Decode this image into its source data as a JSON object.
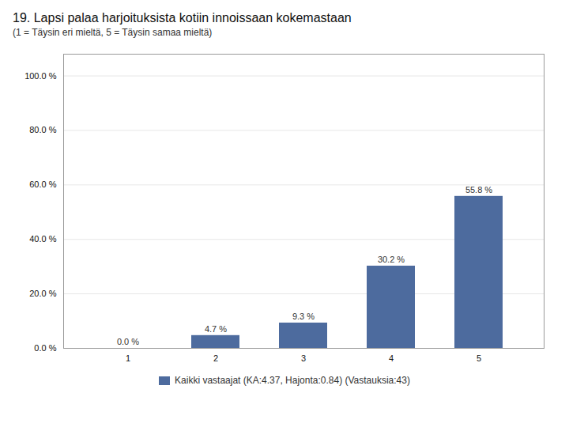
{
  "chart_data": {
    "type": "bar",
    "title": "19. Lapsi palaa harjoituksista kotiin innoissaan kokemastaan",
    "subtitle": "(1 = Täysin eri mieltä, 5 = Täysin samaa mieltä)",
    "categories": [
      1,
      2,
      3,
      4,
      5
    ],
    "series": [
      {
        "name": "Kaikki vastaajat (KA:4.37, Hajonta:0.84) (Vastauksia:43)",
        "color": "#4d6b9e",
        "values": [
          0.0,
          4.7,
          9.3,
          30.2,
          55.8
        ],
        "value_labels": [
          "0.0 %",
          "4.7 %",
          "9.3 %",
          "30.2 %",
          "55.8 %"
        ]
      }
    ],
    "data_labels": true,
    "ylim": [
      0,
      108
    ],
    "yticks": [
      {
        "value": 0.0,
        "label": "0.0 %"
      },
      {
        "value": 20.0,
        "label": "20.0 %"
      },
      {
        "value": 40.0,
        "label": "40.0 %"
      },
      {
        "value": 60.0,
        "label": "60.0 %"
      },
      {
        "value": 80.0,
        "label": "80.0 %"
      },
      {
        "value": 100.0,
        "label": "100.0 %"
      }
    ],
    "grid": true,
    "legend": "bottom"
  }
}
